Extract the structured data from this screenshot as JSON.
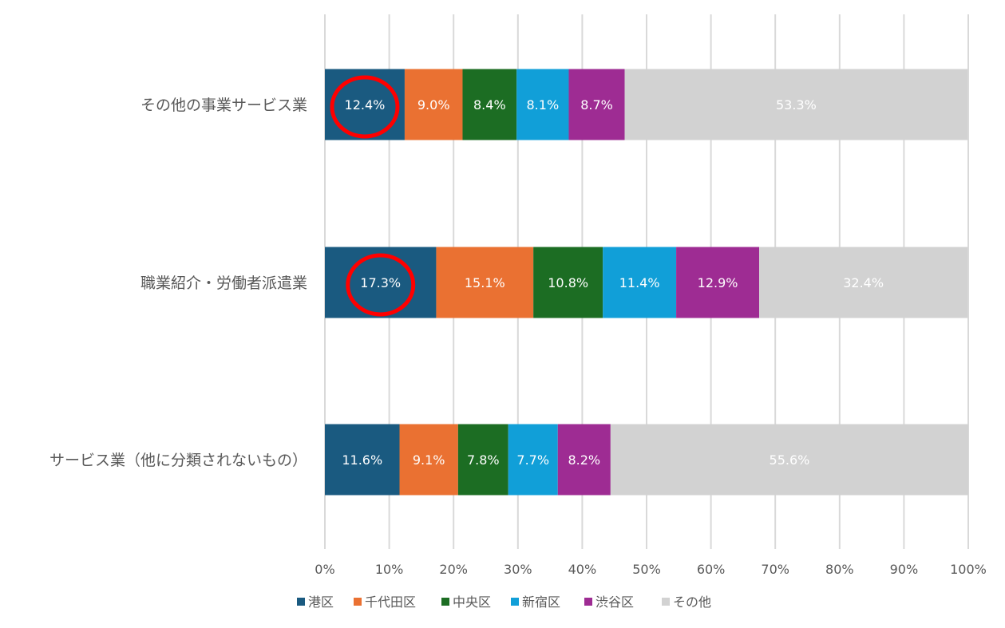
{
  "chart_data": {
    "type": "bar",
    "orientation": "horizontal",
    "stacked": "percent",
    "title": "",
    "xlabel": "",
    "ylabel": "",
    "xlim": [
      0,
      100
    ],
    "x_ticks": [
      "0%",
      "10%",
      "20%",
      "30%",
      "40%",
      "50%",
      "60%",
      "70%",
      "80%",
      "90%",
      "100%"
    ],
    "grid": "vertical",
    "legend_position": "bottom",
    "categories": [
      "その他の事業サービス業",
      "職業紹介・労働者派遣業",
      "サービス業（他に分類されないもの）"
    ],
    "series": [
      {
        "name": "港区",
        "color": "#1a5a80",
        "values": [
          12.4,
          17.3,
          11.6
        ],
        "labels": [
          "12.4%",
          "17.3%",
          "11.6%"
        ]
      },
      {
        "name": "千代田区",
        "color": "#ea7132",
        "values": [
          9.0,
          15.1,
          9.1
        ],
        "labels": [
          "9.0%",
          "15.1%",
          "9.1%"
        ]
      },
      {
        "name": "中央区",
        "color": "#1c6d23",
        "values": [
          8.4,
          10.8,
          7.8
        ],
        "labels": [
          "8.4%",
          "10.8%",
          "7.8%"
        ]
      },
      {
        "name": "新宿区",
        "color": "#119fd8",
        "values": [
          8.1,
          11.4,
          7.7
        ],
        "labels": [
          "8.1%",
          "11.4%",
          "7.7%"
        ]
      },
      {
        "name": "渋谷区",
        "color": "#9e2c93",
        "values": [
          8.7,
          12.9,
          8.2
        ],
        "labels": [
          "8.7%",
          "12.9%",
          "8.2%"
        ]
      },
      {
        "name": "その他",
        "color": "#d2d2d2",
        "values": [
          53.3,
          32.4,
          55.6
        ],
        "labels": [
          "53.3%",
          "32.4%",
          "55.6%"
        ]
      }
    ],
    "annotations": [
      {
        "type": "circle",
        "category_index": 0,
        "series_index": 0,
        "color": "#ff0000"
      },
      {
        "type": "circle",
        "category_index": 1,
        "series_index": 0,
        "color": "#ff0000"
      }
    ]
  }
}
